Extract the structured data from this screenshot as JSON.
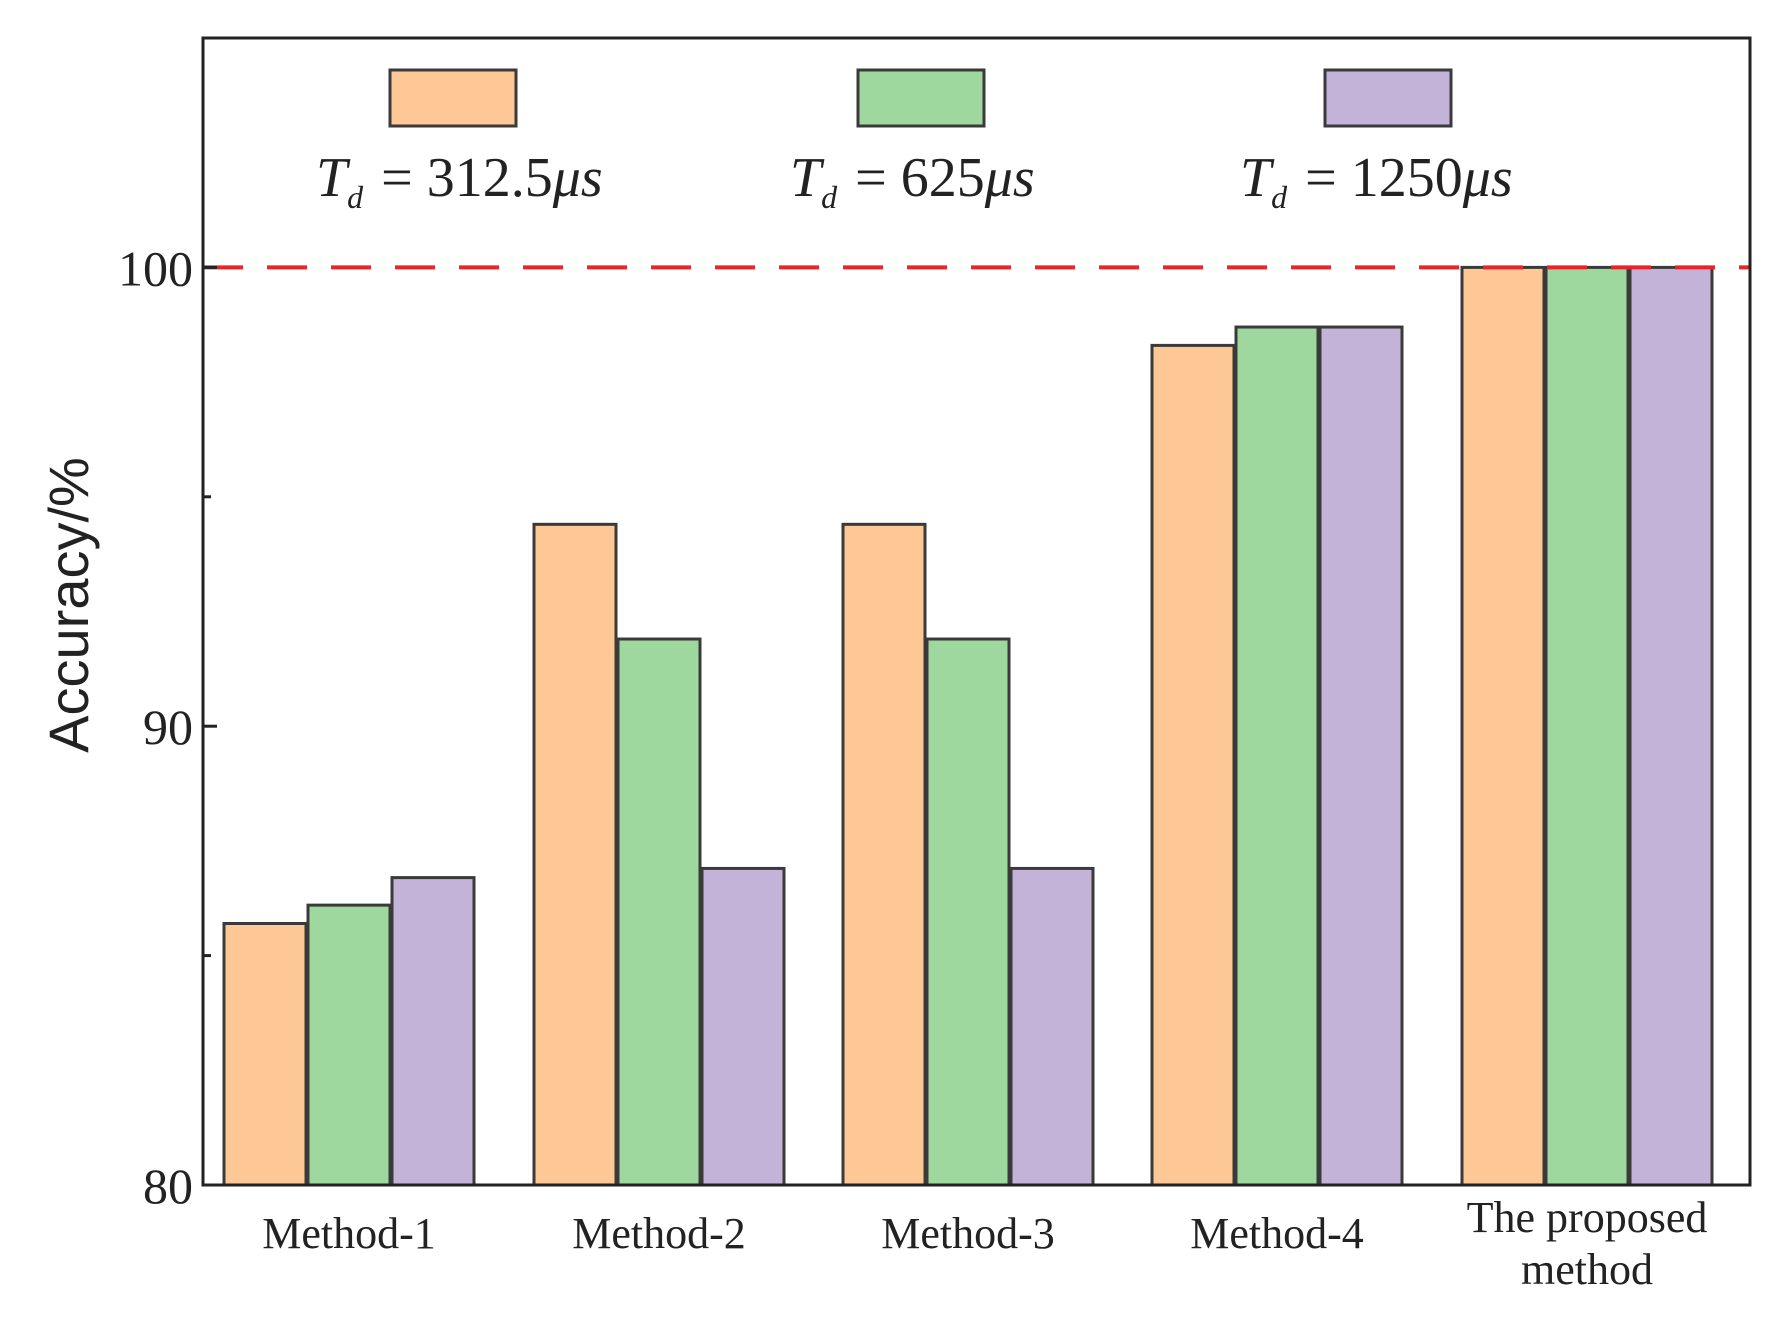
{
  "chart_data": {
    "type": "bar",
    "title": "",
    "xlabel": "",
    "ylabel": "Accuracy/%",
    "ylim": [
      80,
      105
    ],
    "yticks": [
      80,
      90,
      100
    ],
    "ytick_labels": [
      "80",
      "90",
      "100"
    ],
    "grid": false,
    "legend_position": "top",
    "categories": [
      [
        "Method-1"
      ],
      [
        "Method-2"
      ],
      [
        "Method-3"
      ],
      [
        "Method-4"
      ],
      [
        "The proposed",
        "method"
      ]
    ],
    "series": [
      {
        "name": "T_d = 312.5μs",
        "legend_symbol": "T",
        "legend_subscript": "d",
        "legend_value": "312.5",
        "legend_unit": "μs",
        "color": "#FDC896",
        "values": [
          85.7,
          94.4,
          94.4,
          98.3,
          100
        ]
      },
      {
        "name": "T_d = 625μs",
        "legend_symbol": "T",
        "legend_subscript": "d",
        "legend_value": "625",
        "legend_unit": "μs",
        "color": "#9FD89F",
        "values": [
          86.1,
          91.9,
          91.9,
          98.7,
          100
        ]
      },
      {
        "name": "T_d = 1250μs",
        "legend_symbol": "T",
        "legend_subscript": "d",
        "legend_value": "1250",
        "legend_unit": "μs",
        "color": "#C4B3D8",
        "values": [
          86.7,
          86.9,
          86.9,
          98.7,
          100
        ]
      }
    ],
    "reference_line": {
      "value": 100,
      "style": "dashed",
      "color": "#E8232A"
    }
  }
}
